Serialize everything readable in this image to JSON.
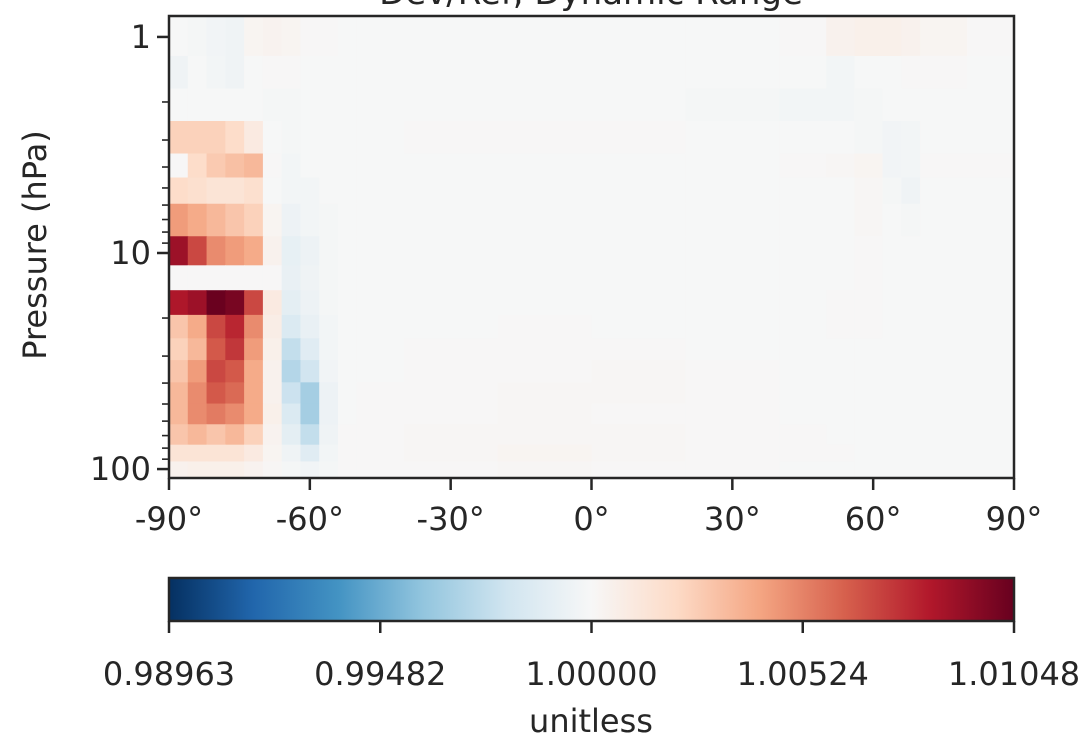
{
  "chart_data": {
    "type": "heatmap",
    "title": "Dev/Ref, Dynamic Range",
    "xlabel": "",
    "ylabel": "Pressure (hPa)",
    "x_ticks": [
      "-90°",
      "-60°",
      "-30°",
      "0°",
      "30°",
      "60°",
      "90°"
    ],
    "x_range": [
      -90,
      90
    ],
    "y_ticks": [
      "1",
      "10",
      "100"
    ],
    "y_scale": "log",
    "y_range_hPa": [
      0.8,
      110
    ],
    "colorbar": {
      "colormap": "RdBu_r",
      "range": [
        0.98963,
        1.01048
      ],
      "ticks": [
        "0.98963",
        "0.99482",
        "1.00000",
        "1.00524",
        "1.01048"
      ],
      "label": "unitless"
    },
    "colors": {
      "neg_strong": "#053061",
      "neg_mid": "#4393c3",
      "neutral": "#f7f7f7",
      "pos_mid": "#f4a582",
      "pos_strong": "#67001f"
    },
    "pressure_levels_hPa": [
      1.0,
      1.5,
      2.0,
      3.0,
      4.0,
      5.0,
      7.0,
      10.0,
      13.0,
      17.0,
      22.0,
      28.0,
      35.0,
      45.0,
      55.0,
      70.0,
      85.0,
      100.0
    ],
    "latitude_bands": [
      -90,
      -86,
      -82,
      -78,
      -74,
      -70,
      -66,
      -62,
      -58,
      -54,
      -50,
      -40,
      -20,
      0,
      20,
      40,
      50,
      56,
      62,
      66,
      70,
      80,
      90
    ],
    "ratio_values": [
      [
        1.0,
        0.9999,
        0.9997,
        0.9996,
        1.0003,
        1.0004,
        1.0003,
        1.0001,
        1.0001,
        1.0,
        1.0,
        1.0,
        1.0,
        1.0,
        1.0,
        1.0001,
        1.0005,
        1.0006,
        1.0006,
        1.0005,
        1.0003,
        1.0001
      ],
      [
        0.9996,
        1.0,
        0.9998,
        0.9996,
        1.0,
        1.0001,
        1.0001,
        1.0,
        1.0,
        1.0,
        1.0,
        1.0,
        1.0,
        1.0,
        1.0,
        1.0,
        0.9998,
        1.0,
        1.0,
        1.0001,
        1.0001,
        1.0
      ],
      [
        1.0,
        1.0,
        1.0,
        1.0,
        1.0,
        0.9999,
        0.9999,
        1.0,
        1.0,
        1.0,
        1.0,
        1.0,
        1.0,
        1.0,
        0.9999,
        0.9998,
        0.9998,
        0.9999,
        1.0,
        1.0,
        1.0,
        1.0
      ],
      [
        1.0025,
        1.0025,
        1.0025,
        1.002,
        1.001,
        1.0,
        0.9999,
        1.0,
        1.0,
        1.0,
        1.0,
        1.0001,
        1.0001,
        1.0001,
        1.0,
        1.0,
        1.0,
        0.9999,
        0.9997,
        0.9998,
        1.0,
        1.0
      ],
      [
        1.0001,
        1.002,
        1.0028,
        1.0032,
        1.0035,
        1.0001,
        0.9998,
        1.0,
        1.0,
        1.0,
        1.0,
        1.0,
        1.0,
        1.0,
        1.0,
        1.0001,
        1.0002,
        1.0003,
        0.9997,
        0.9998,
        1.0001,
        1.0001
      ],
      [
        1.002,
        1.0018,
        1.0015,
        1.0015,
        1.0018,
        1.0,
        0.9998,
        0.9998,
        1.0,
        1.0,
        1.0,
        1.0,
        1.0,
        1.0,
        1.0,
        1.0,
        1.0,
        1.0002,
        0.9999,
        0.9996,
        1.0,
        1.0
      ],
      [
        1.0045,
        1.004,
        1.0035,
        1.003,
        1.0025,
        1.0003,
        0.9995,
        0.9998,
        0.9999,
        1.0,
        1.0,
        1.0,
        1.0,
        1.0,
        1.0,
        1.0,
        1.0,
        1.0002,
        1.0,
        0.9999,
        1.0,
        1.0
      ],
      [
        1.009,
        1.007,
        1.005,
        1.0045,
        1.004,
        1.0005,
        0.9992,
        0.9995,
        0.9999,
        1.0,
        1.0,
        1.0,
        1.0,
        1.0,
        1.0,
        1.0,
        1.0,
        1.0001,
        1.0,
        1.0,
        1.0,
        1.0
      ],
      [
        1.0001,
        1.0001,
        1.0001,
        1.0001,
        1.0001,
        1.0001,
        0.9993,
        0.9996,
        0.9999,
        1.0,
        1.0,
        1.0,
        1.0,
        1.0,
        1.0,
        1.0,
        1.0,
        1.0001,
        1.0,
        1.0,
        1.0,
        1.0
      ],
      [
        1.0085,
        1.009,
        1.0104,
        1.01,
        1.007,
        1.001,
        0.999,
        0.9995,
        0.9999,
        1.0,
        1.0,
        1.0,
        1.0,
        1.0,
        1.0,
        1.0,
        1.0001,
        1.0001,
        1.0,
        1.0,
        1.0,
        1.0
      ],
      [
        1.003,
        1.004,
        1.007,
        1.008,
        1.005,
        1.0008,
        0.9985,
        0.9993,
        0.9998,
        1.0,
        1.0,
        1.0,
        1.0001,
        1.0,
        1.0,
        1.0,
        1.0001,
        1.0001,
        1.0,
        1.0,
        1.0,
        1.0
      ],
      [
        1.0025,
        1.0035,
        1.0065,
        1.0075,
        1.0045,
        1.0006,
        0.9975,
        0.9988,
        0.9998,
        1.0,
        1.0,
        1.0001,
        1.0001,
        1.0001,
        1.0,
        1.0,
        1.0,
        1.0,
        1.0,
        1.0,
        1.0,
        1.0
      ],
      [
        1.003,
        1.0045,
        1.007,
        1.0065,
        1.004,
        1.0005,
        0.997,
        0.998,
        0.9997,
        1.0,
        1.0,
        1.0001,
        1.0001,
        1.0002,
        1.0001,
        1.0,
        1.0,
        1.0,
        1.0,
        1.0,
        1.0,
        1.0
      ],
      [
        1.0035,
        1.005,
        1.0065,
        1.006,
        1.004,
        1.0005,
        0.9978,
        0.9965,
        0.9995,
        1.0,
        1.0001,
        1.0001,
        1.0002,
        1.0002,
        1.0001,
        1.0,
        1.0,
        1.0,
        1.0,
        1.0,
        1.0,
        1.0
      ],
      [
        1.0035,
        1.005,
        1.0055,
        1.005,
        1.004,
        1.0006,
        0.9985,
        0.9965,
        0.9995,
        1.0,
        1.0001,
        1.0001,
        1.0002,
        1.0001,
        1.0001,
        1.0,
        1.0,
        1.0,
        1.0,
        1.0,
        1.0,
        1.0
      ],
      [
        1.003,
        1.0035,
        1.003,
        1.0035,
        1.0025,
        1.0004,
        0.999,
        0.9975,
        0.9996,
        1.0001,
        1.0001,
        1.0002,
        1.0002,
        1.0002,
        1.0001,
        1.0001,
        1.0,
        1.0,
        1.0,
        1.0,
        1.0,
        1.0
      ],
      [
        1.0015,
        1.0015,
        1.0015,
        1.0015,
        1.001,
        1.0003,
        0.9996,
        0.9988,
        0.9998,
        1.0001,
        1.0001,
        1.0002,
        1.0003,
        1.0002,
        1.0001,
        1.0001,
        1.0001,
        1.0,
        1.0,
        1.0,
        1.0,
        1.0
      ],
      [
        1.0005,
        1.0006,
        1.0006,
        1.0006,
        1.0004,
        1.0002,
        0.9999,
        0.9997,
        0.9999,
        1.0001,
        1.0001,
        1.0001,
        1.0002,
        1.0001,
        1.0001,
        1.0,
        1.0,
        1.0,
        1.0,
        1.0,
        1.0,
        1.0
      ]
    ]
  }
}
